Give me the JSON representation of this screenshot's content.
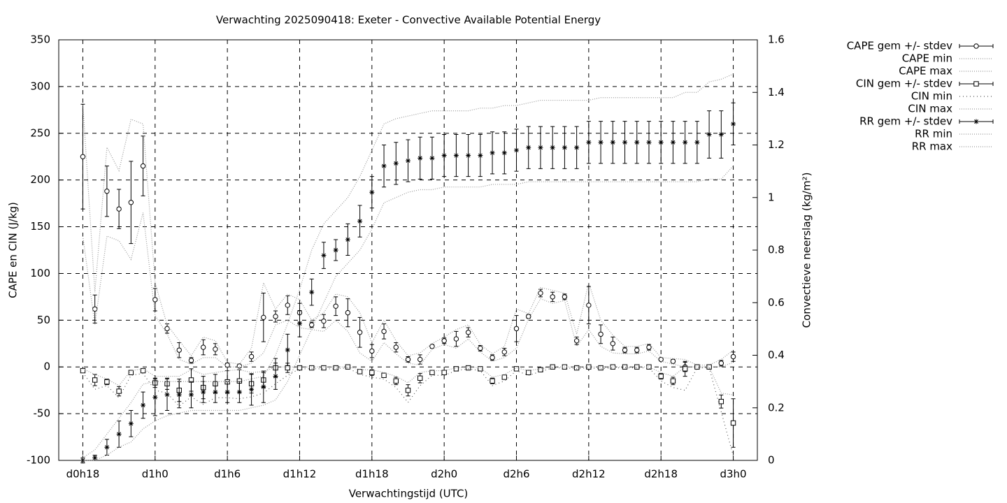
{
  "chart_data": {
    "type": "errorbar",
    "title": "Verwachting 2025090418: Exeter - Convective Available Potential Energy",
    "xlabel": "Verwachtingstijd (UTC)",
    "ylabel": "CAPE en CIN (J/kg)",
    "y2label": "Convectieve neerslag (kg/m²)",
    "x": [
      18,
      19,
      20,
      21,
      22,
      23,
      24,
      25,
      26,
      27,
      28,
      29,
      30,
      31,
      32,
      33,
      34,
      35,
      36,
      37,
      38,
      39,
      40,
      41,
      42,
      43,
      44,
      45,
      46,
      47,
      48,
      49,
      50,
      51,
      52,
      53,
      54,
      55,
      56,
      57,
      58,
      59,
      60,
      61,
      62,
      63,
      64,
      65,
      66,
      67,
      68,
      69,
      70,
      71,
      72
    ],
    "xlim": [
      16,
      74
    ],
    "xticks": [
      {
        "value": 18,
        "label": "d0h18"
      },
      {
        "value": 24,
        "label": "d1h0"
      },
      {
        "value": 30,
        "label": "d1h6"
      },
      {
        "value": 36,
        "label": "d1h12"
      },
      {
        "value": 42,
        "label": "d1h18"
      },
      {
        "value": 48,
        "label": "d2h0"
      },
      {
        "value": 54,
        "label": "d2h6"
      },
      {
        "value": 60,
        "label": "d2h12"
      },
      {
        "value": 66,
        "label": "d2h18"
      },
      {
        "value": 72,
        "label": "d3h0"
      }
    ],
    "ylim": [
      -100,
      350
    ],
    "yticks": [
      -100,
      -50,
      0,
      50,
      100,
      150,
      200,
      250,
      300,
      350
    ],
    "y2lim": [
      0,
      1.6
    ],
    "y2ticks": [
      0,
      0.2,
      0.4,
      0.6,
      0.8,
      1,
      1.2,
      1.4,
      1.6
    ],
    "grid": true,
    "legend": "outside-right-top",
    "series": [
      {
        "name": "CAPE gem +/- stdev",
        "color": "#000000",
        "marker": "circle",
        "values": [
          225,
          62,
          188,
          169,
          176,
          215,
          72,
          41,
          18,
          7,
          21,
          19,
          2,
          1,
          11,
          53,
          54,
          66,
          58,
          45,
          49,
          65,
          58,
          37,
          17,
          38,
          21,
          8,
          8,
          22,
          28,
          30,
          37,
          20,
          10,
          16,
          41,
          54,
          79,
          75,
          75,
          28,
          66,
          35,
          25,
          18,
          18,
          21,
          8,
          6,
          0,
          0,
          0,
          4,
          11
        ],
        "errors": [
          56,
          15,
          27,
          21,
          44,
          32,
          12,
          5,
          8,
          3,
          8,
          6,
          2,
          1,
          5,
          26,
          6,
          10,
          10,
          3,
          7,
          10,
          15,
          16,
          7,
          8,
          5,
          3,
          5,
          2,
          3,
          8,
          5,
          3,
          3,
          4,
          14,
          2,
          4,
          5,
          3,
          4,
          20,
          10,
          7,
          3,
          3,
          3,
          1,
          2,
          5,
          1,
          1,
          3,
          5
        ]
      },
      {
        "name": "CAPE min",
        "color": "#999999",
        "line": "dotted",
        "values": [
          140,
          45,
          140,
          135,
          115,
          165,
          55,
          35,
          8,
          3,
          10,
          10,
          0,
          0,
          4,
          15,
          45,
          50,
          42,
          40,
          38,
          50,
          38,
          15,
          6,
          26,
          14,
          4,
          2,
          19,
          24,
          20,
          30,
          16,
          6,
          10,
          20,
          51,
          73,
          68,
          71,
          22,
          40,
          22,
          15,
          14,
          14,
          17,
          6,
          3,
          0,
          0,
          0,
          0,
          5
        ]
      },
      {
        "name": "CAPE max",
        "color": "#999999",
        "line": "dotted",
        "values": [
          282,
          80,
          235,
          210,
          265,
          260,
          90,
          45,
          28,
          12,
          32,
          28,
          5,
          3,
          20,
          90,
          62,
          78,
          72,
          50,
          58,
          78,
          75,
          58,
          26,
          50,
          28,
          12,
          15,
          25,
          32,
          40,
          45,
          24,
          14,
          22,
          62,
          57,
          85,
          82,
          79,
          35,
          90,
          50,
          34,
          22,
          22,
          25,
          10,
          9,
          8,
          2,
          2,
          8,
          18
        ]
      },
      {
        "name": "CIN gem +/- stdev",
        "color": "#000000",
        "marker": "square",
        "values": [
          -4,
          -14,
          -16,
          -26,
          -6,
          -4,
          -17,
          -18,
          -25,
          -14,
          -22,
          -18,
          -16,
          -15,
          -18,
          -14,
          -1,
          -1,
          -1,
          -1,
          -1,
          -1,
          0,
          -5,
          -6,
          -9,
          -15,
          -25,
          -12,
          -6,
          -6,
          -2,
          -1,
          -2,
          -15,
          -11,
          -2,
          -6,
          -3,
          0,
          0,
          -1,
          0,
          -1,
          0,
          0,
          0,
          0,
          -10,
          -15,
          -2,
          0,
          0,
          -37,
          -60
        ],
        "errors": [
          1,
          6,
          3,
          5,
          2,
          2,
          5,
          6,
          12,
          12,
          12,
          10,
          12,
          12,
          10,
          8,
          10,
          5,
          1,
          1,
          1,
          1,
          1,
          2,
          3,
          2,
          4,
          6,
          5,
          2,
          2,
          1,
          1,
          1,
          3,
          2,
          1,
          2,
          1,
          1,
          1,
          1,
          1,
          1,
          1,
          1,
          1,
          1,
          3,
          4,
          8,
          1,
          1,
          7,
          26
        ]
      },
      {
        "name": "CIN min",
        "color": "#555555",
        "line": "sparse",
        "values": [
          -6,
          -24,
          -20,
          -33,
          -9,
          -7,
          -25,
          -28,
          -42,
          -32,
          -40,
          -33,
          -33,
          -34,
          -32,
          -28,
          -18,
          -9,
          -2,
          -2,
          -2,
          -2,
          -1,
          -8,
          -11,
          -13,
          -22,
          -38,
          -20,
          -9,
          -9,
          -4,
          -2,
          -4,
          -20,
          -15,
          -4,
          -9,
          -5,
          -1,
          -1,
          -2,
          -1,
          -2,
          -1,
          -1,
          -1,
          -1,
          -15,
          -22,
          -25,
          -1,
          -1,
          -48,
          -95
        ]
      },
      {
        "name": "CIN max",
        "color": "#999999",
        "line": "dotted",
        "values": [
          -2,
          -8,
          -13,
          -20,
          -4,
          -2,
          -10,
          -10,
          -10,
          -3,
          -8,
          -6,
          -4,
          -3,
          -6,
          -5,
          0,
          0,
          0,
          0,
          0,
          0,
          0,
          -3,
          -3,
          -6,
          -10,
          -17,
          -6,
          -4,
          -4,
          -1,
          0,
          -1,
          -11,
          -8,
          -1,
          -4,
          -2,
          0,
          0,
          0,
          0,
          0,
          0,
          0,
          0,
          0,
          -6,
          -10,
          0,
          0,
          0,
          -28,
          -30
        ]
      },
      {
        "name": "RR gem +/- stdev",
        "color": "#000000",
        "marker": "star",
        "axis": "y2",
        "values": [
          0,
          0.01,
          0.05,
          0.1,
          0.14,
          0.21,
          0.24,
          0.25,
          0.25,
          0.25,
          0.26,
          0.26,
          0.26,
          0.26,
          0.27,
          0.28,
          0.32,
          0.42,
          0.52,
          0.64,
          0.78,
          0.8,
          0.84,
          0.91,
          1.02,
          1.12,
          1.13,
          1.14,
          1.15,
          1.15,
          1.16,
          1.16,
          1.16,
          1.16,
          1.17,
          1.17,
          1.18,
          1.19,
          1.19,
          1.19,
          1.19,
          1.19,
          1.21,
          1.21,
          1.21,
          1.21,
          1.21,
          1.21,
          1.21,
          1.21,
          1.21,
          1.21,
          1.24,
          1.24,
          1.28
        ],
        "errors": [
          0.01,
          0.01,
          0.03,
          0.05,
          0.05,
          0.05,
          0.07,
          0.06,
          0.05,
          0.05,
          0.04,
          0.04,
          0.04,
          0.04,
          0.06,
          0.06,
          0.05,
          0.06,
          0.05,
          0.05,
          0.05,
          0.04,
          0.06,
          0.06,
          0.06,
          0.08,
          0.08,
          0.08,
          0.08,
          0.08,
          0.08,
          0.08,
          0.08,
          0.08,
          0.08,
          0.08,
          0.08,
          0.08,
          0.08,
          0.08,
          0.08,
          0.08,
          0.08,
          0.08,
          0.08,
          0.08,
          0.08,
          0.08,
          0.08,
          0.08,
          0.08,
          0.08,
          0.09,
          0.09,
          0.08
        ]
      },
      {
        "name": "RR min",
        "color": "#999999",
        "line": "dotted",
        "axis": "y2",
        "values": [
          0,
          0,
          0.02,
          0.05,
          0.07,
          0.12,
          0.15,
          0.17,
          0.18,
          0.19,
          0.19,
          0.19,
          0.19,
          0.19,
          0.2,
          0.21,
          0.23,
          0.3,
          0.4,
          0.5,
          0.6,
          0.7,
          0.75,
          0.8,
          0.88,
          0.98,
          1.0,
          1.02,
          1.03,
          1.03,
          1.04,
          1.04,
          1.04,
          1.04,
          1.05,
          1.05,
          1.05,
          1.06,
          1.06,
          1.06,
          1.06,
          1.06,
          1.06,
          1.06,
          1.06,
          1.06,
          1.06,
          1.06,
          1.06,
          1.06,
          1.06,
          1.06,
          1.07,
          1.07,
          1.12
        ]
      },
      {
        "name": "RR max",
        "color": "#999999",
        "line": "dotted",
        "axis": "y2",
        "values": [
          0.01,
          0.04,
          0.1,
          0.16,
          0.22,
          0.29,
          0.3,
          0.3,
          0.3,
          0.3,
          0.3,
          0.3,
          0.3,
          0.3,
          0.31,
          0.32,
          0.4,
          0.52,
          0.65,
          0.8,
          0.9,
          0.95,
          1.0,
          1.08,
          1.18,
          1.28,
          1.3,
          1.31,
          1.32,
          1.33,
          1.33,
          1.33,
          1.33,
          1.34,
          1.34,
          1.35,
          1.35,
          1.36,
          1.37,
          1.37,
          1.37,
          1.37,
          1.37,
          1.38,
          1.38,
          1.38,
          1.38,
          1.38,
          1.38,
          1.38,
          1.4,
          1.4,
          1.44,
          1.45,
          1.47
        ]
      }
    ]
  }
}
